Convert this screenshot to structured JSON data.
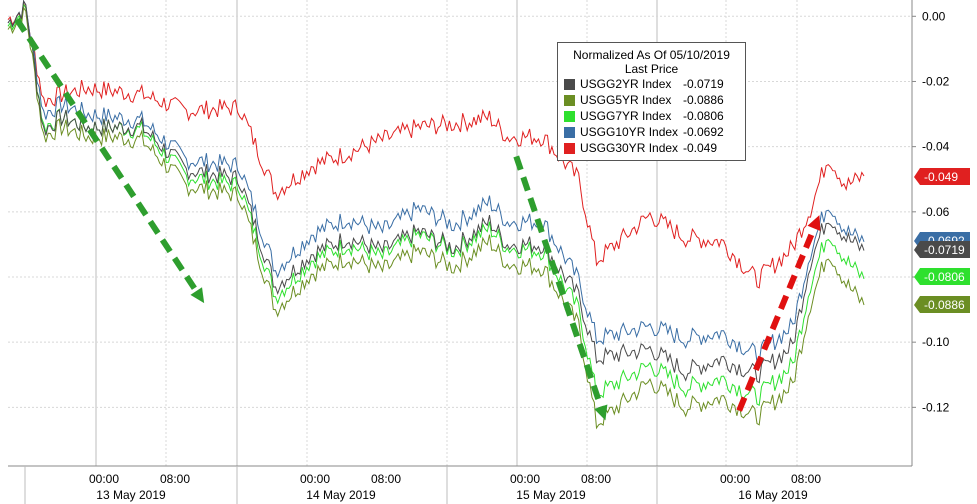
{
  "chart_data": {
    "type": "line",
    "legend": {
      "title_line1": "Normalized As Of 05/10/2019",
      "title_line2": "Last Price",
      "position": "top-center"
    },
    "ylim": [
      -0.138,
      0.005
    ],
    "y_ticks": [
      "0.00",
      "-0.02",
      "-0.04",
      "-0.06",
      "-0.08",
      "-0.10",
      "-0.12"
    ],
    "y_tick_values": [
      0.0,
      -0.02,
      -0.04,
      -0.06,
      -0.08,
      -0.1,
      -0.12
    ],
    "x_time_labels": [
      "00:00",
      "08:00",
      "00:00",
      "08:00",
      "00:00",
      "08:00",
      "00:00",
      "08:00"
    ],
    "x_day_labels": [
      "13 May 2019",
      "14 May 2019",
      "15 May 2019",
      "16 May 2019"
    ],
    "grid": true,
    "series": [
      {
        "name": "USGG2YR Index",
        "last": "-0.0719",
        "color": "#4a4a4a",
        "x": [
          0,
          2,
          4,
          6,
          9,
          12,
          15,
          20,
          26,
          30,
          34,
          38,
          42,
          46,
          50,
          54,
          56,
          60,
          64,
          66,
          72,
          76,
          80,
          84,
          88,
          90,
          92,
          94,
          96
        ],
        "y": [
          -0.002,
          0.003,
          -0.035,
          -0.031,
          -0.034,
          -0.034,
          -0.034,
          -0.047,
          -0.05,
          -0.083,
          -0.073,
          -0.068,
          -0.072,
          -0.066,
          -0.071,
          -0.063,
          -0.07,
          -0.07,
          -0.086,
          -0.105,
          -0.102,
          -0.109,
          -0.105,
          -0.11,
          -0.101,
          -0.075,
          -0.061,
          -0.068,
          -0.0719
        ]
      },
      {
        "name": "USGG5YR Index",
        "last": "-0.0886",
        "color": "#6b8e23",
        "x": [
          0,
          2,
          4,
          6,
          9,
          12,
          15,
          20,
          26,
          30,
          34,
          38,
          42,
          46,
          50,
          54,
          56,
          60,
          64,
          66,
          72,
          76,
          80,
          84,
          88,
          90,
          92,
          94,
          96
        ],
        "y": [
          -0.004,
          0.001,
          -0.037,
          -0.034,
          -0.037,
          -0.037,
          -0.038,
          -0.052,
          -0.055,
          -0.09,
          -0.079,
          -0.074,
          -0.078,
          -0.072,
          -0.077,
          -0.069,
          -0.076,
          -0.077,
          -0.095,
          -0.125,
          -0.112,
          -0.12,
          -0.117,
          -0.123,
          -0.113,
          -0.088,
          -0.072,
          -0.082,
          -0.0886
        ]
      },
      {
        "name": "USGG7YR Index",
        "last": "-0.0806",
        "color": "#2ee02e",
        "x": [
          0,
          2,
          4,
          6,
          9,
          12,
          15,
          20,
          26,
          30,
          34,
          38,
          42,
          46,
          50,
          54,
          56,
          60,
          64,
          66,
          72,
          76,
          80,
          84,
          88,
          90,
          92,
          94,
          96
        ],
        "y": [
          -0.003,
          0.002,
          -0.034,
          -0.031,
          -0.034,
          -0.034,
          -0.035,
          -0.049,
          -0.052,
          -0.086,
          -0.075,
          -0.07,
          -0.074,
          -0.067,
          -0.072,
          -0.065,
          -0.071,
          -0.072,
          -0.09,
          -0.116,
          -0.107,
          -0.114,
          -0.111,
          -0.117,
          -0.107,
          -0.082,
          -0.066,
          -0.075,
          -0.0806
        ]
      },
      {
        "name": "USGG10YR Index",
        "last": "-0.0692",
        "color": "#3a6ea5",
        "x": [
          0,
          2,
          4,
          6,
          9,
          12,
          15,
          20,
          26,
          30,
          34,
          38,
          42,
          46,
          50,
          54,
          56,
          60,
          64,
          66,
          72,
          76,
          80,
          84,
          88,
          90,
          92,
          94,
          96
        ],
        "y": [
          -0.002,
          0.003,
          -0.03,
          -0.027,
          -0.03,
          -0.031,
          -0.032,
          -0.044,
          -0.046,
          -0.078,
          -0.067,
          -0.062,
          -0.066,
          -0.059,
          -0.064,
          -0.057,
          -0.063,
          -0.063,
          -0.081,
          -0.099,
          -0.095,
          -0.099,
          -0.097,
          -0.104,
          -0.095,
          -0.072,
          -0.057,
          -0.066,
          -0.0692
        ]
      },
      {
        "name": "USGG30YR Index",
        "last": "-0.049",
        "color": "#e02020",
        "x": [
          0,
          2,
          4,
          6,
          9,
          12,
          15,
          20,
          26,
          30,
          34,
          38,
          42,
          46,
          50,
          54,
          56,
          60,
          64,
          66,
          72,
          76,
          80,
          84,
          88,
          90,
          92,
          94,
          96
        ],
        "y": [
          -0.001,
          0.002,
          -0.026,
          -0.024,
          -0.022,
          -0.023,
          -0.024,
          -0.029,
          -0.028,
          -0.054,
          -0.046,
          -0.042,
          -0.038,
          -0.034,
          -0.033,
          -0.031,
          -0.037,
          -0.037,
          -0.05,
          -0.075,
          -0.061,
          -0.068,
          -0.069,
          -0.081,
          -0.071,
          -0.059,
          -0.043,
          -0.052,
          -0.049
        ]
      }
    ],
    "annotations": [
      {
        "type": "arrow",
        "color": "#2e9e2e",
        "from": [
          1,
          -0.001
        ],
        "to": [
          22,
          -0.088
        ]
      },
      {
        "type": "arrow",
        "color": "#2e9e2e",
        "from": [
          57,
          -0.043
        ],
        "to": [
          67,
          -0.124
        ]
      },
      {
        "type": "arrow",
        "color": "#e01010",
        "from": [
          82,
          -0.121
        ],
        "to": [
          91,
          -0.061
        ]
      }
    ],
    "last_value_labels": [
      {
        "text": "-0.049",
        "value": -0.049,
        "bg": "#e02020",
        "fg": "#ffffff"
      },
      {
        "text": "-0.0692",
        "value": -0.0692,
        "bg": "#3a6ea5",
        "fg": "#ffffff"
      },
      {
        "text": "-0.0719",
        "value": -0.0719,
        "bg": "#4a4a4a",
        "fg": "#ffffff"
      },
      {
        "text": "-0.0806",
        "value": -0.0806,
        "bg": "#2ee02e",
        "fg": "#ffffff"
      },
      {
        "text": "-0.0886",
        "value": -0.0886,
        "bg": "#6b8e23",
        "fg": "#ffffff"
      }
    ]
  }
}
